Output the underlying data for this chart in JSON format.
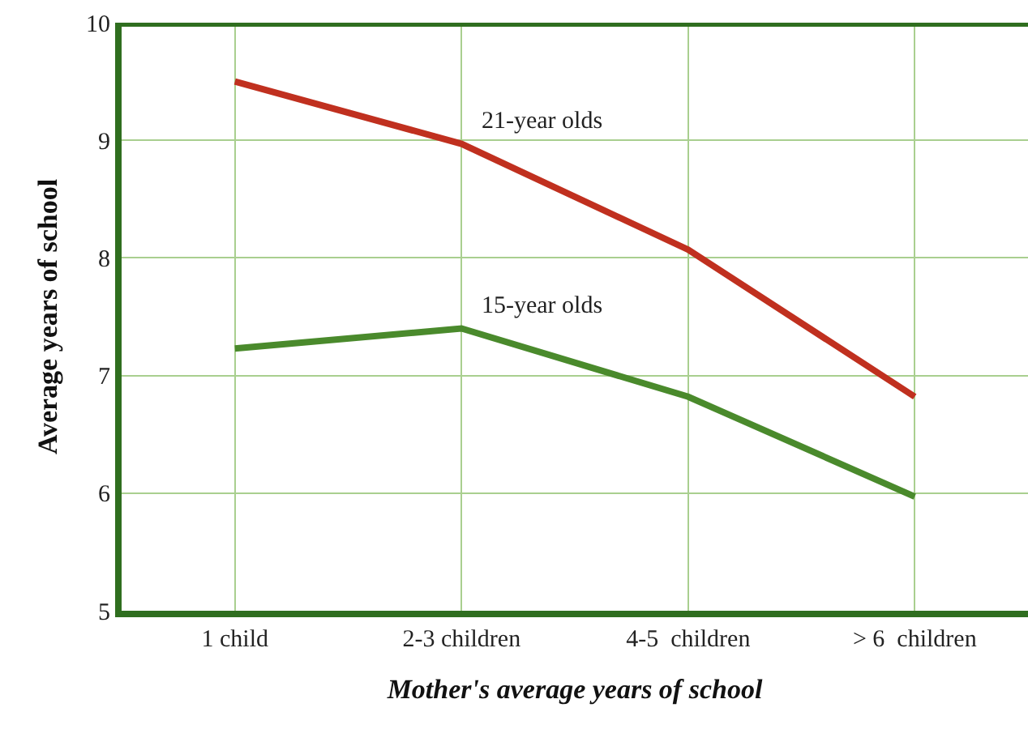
{
  "chart_data": {
    "type": "line",
    "xlabel": "Mother's average years of school",
    "ylabel": "Average years of school",
    "categories": [
      "1 child",
      "2-3 children",
      "4-5  children",
      "> 6  children"
    ],
    "series": [
      {
        "name": "21-year olds",
        "color": "#c0301f",
        "values": [
          9.5,
          8.97,
          8.07,
          6.82
        ]
      },
      {
        "name": "15-year olds",
        "color": "#4a8a2c",
        "values": [
          7.23,
          7.4,
          6.82,
          5.97
        ]
      }
    ],
    "ylim": [
      5,
      10
    ],
    "yticks": [
      5,
      6,
      7,
      8,
      9,
      10
    ],
    "grid": true,
    "legend": false,
    "marker": "none",
    "line_style": "solid"
  }
}
